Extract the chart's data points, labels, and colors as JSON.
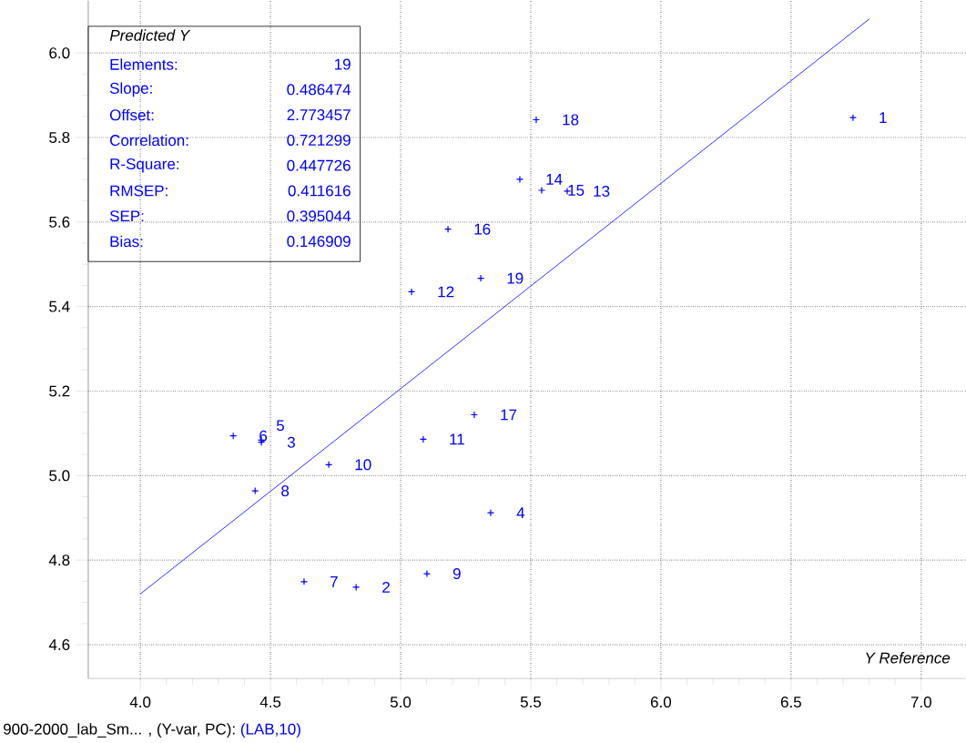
{
  "chart_data": {
    "type": "scatter",
    "xlabel": "Y Reference",
    "ylabel": "Predicted Y",
    "xlim": [
      3.8,
      7.17
    ],
    "ylim": [
      4.52,
      6.124
    ],
    "xticks": [
      {
        "value": 4,
        "label": "4.0"
      },
      {
        "value": 4.5,
        "label": "4.5"
      },
      {
        "value": 5,
        "label": "5.0"
      },
      {
        "value": 5.5,
        "label": "5.5"
      },
      {
        "value": 6,
        "label": "6.0"
      },
      {
        "value": 6.5,
        "label": "6.5"
      },
      {
        "value": 7,
        "label": "7.0"
      }
    ],
    "yticks": [
      {
        "value": 4.6,
        "label": "4.6"
      },
      {
        "value": 4.8,
        "label": "4.8"
      },
      {
        "value": 5,
        "label": "5.0"
      },
      {
        "value": 5.2,
        "label": "5.2"
      },
      {
        "value": 5.4,
        "label": "5.4"
      },
      {
        "value": 5.6,
        "label": "5.6"
      },
      {
        "value": 5.8,
        "label": "5.8"
      },
      {
        "value": 6,
        "label": "6.0"
      }
    ],
    "grid": true,
    "marker": "cross",
    "series": [
      {
        "color": "#0000ff",
        "x": [
          6.738,
          4.829,
          4.465,
          5.346,
          4.465,
          4.357,
          4.629,
          4.441,
          5.101,
          4.724,
          5.087,
          5.042,
          5.64,
          5.458,
          5.542,
          5.182,
          5.283,
          5.521,
          5.308
        ],
        "values": [
          5.847,
          4.736,
          5.079,
          4.912,
          5.084,
          5.094,
          4.749,
          4.964,
          4.768,
          5.026,
          5.086,
          5.435,
          5.673,
          5.701,
          5.675,
          5.583,
          5.144,
          5.842,
          5.467
        ]
      },
      {
        "type": "line",
        "marker": "none",
        "color": "#0000ff",
        "x": [
          4.0,
          6.8
        ],
        "values": [
          4.72,
          6.08
        ]
      }
    ],
    "annotations": [
      "900-2000_lab_Sm... , (Y-var, PC):",
      "(LAB,10)",
      "Elements:",
      "19",
      "Slope:",
      "0.486474",
      "Offset:",
      "2.773457",
      "Correlation:",
      "0.721299",
      "R-Square:",
      "0.447726",
      "RMSEP:",
      "0.411616",
      "SEP:",
      "0.395044",
      "Bias:",
      "0.146909",
      {
        "text": "1",
        "x": 6.738,
        "y": 5.847
      },
      {
        "text": "2",
        "x": 4.829,
        "y": 4.736
      },
      {
        "text": "3",
        "x": 4.465,
        "y": 5.079
      },
      {
        "text": "4",
        "x": 5.346,
        "y": 4.912
      },
      {
        "text": "5",
        "x": 4.465,
        "y": 5.084
      },
      {
        "text": "6",
        "x": 4.357,
        "y": 5.094
      },
      {
        "text": "7",
        "x": 4.629,
        "y": 4.749
      },
      {
        "text": "8",
        "x": 4.441,
        "y": 4.964
      },
      {
        "text": "9",
        "x": 5.101,
        "y": 4.768
      },
      {
        "text": "10",
        "x": 4.724,
        "y": 5.026
      },
      {
        "text": "11",
        "x": 5.087,
        "y": 5.086
      },
      {
        "text": "12",
        "x": 5.042,
        "y": 5.435
      },
      {
        "text": "13",
        "x": 5.64,
        "y": 5.673
      },
      {
        "text": "14",
        "x": 5.458,
        "y": 5.701
      },
      {
        "text": "15",
        "x": 5.542,
        "y": 5.675
      },
      {
        "text": "16",
        "x": 5.182,
        "y": 5.583
      },
      {
        "text": "17",
        "x": 5.283,
        "y": 5.144
      },
      {
        "text": "18",
        "x": 5.521,
        "y": 5.842
      },
      {
        "text": "19",
        "x": 5.308,
        "y": 5.467
      }
    ]
  }
}
